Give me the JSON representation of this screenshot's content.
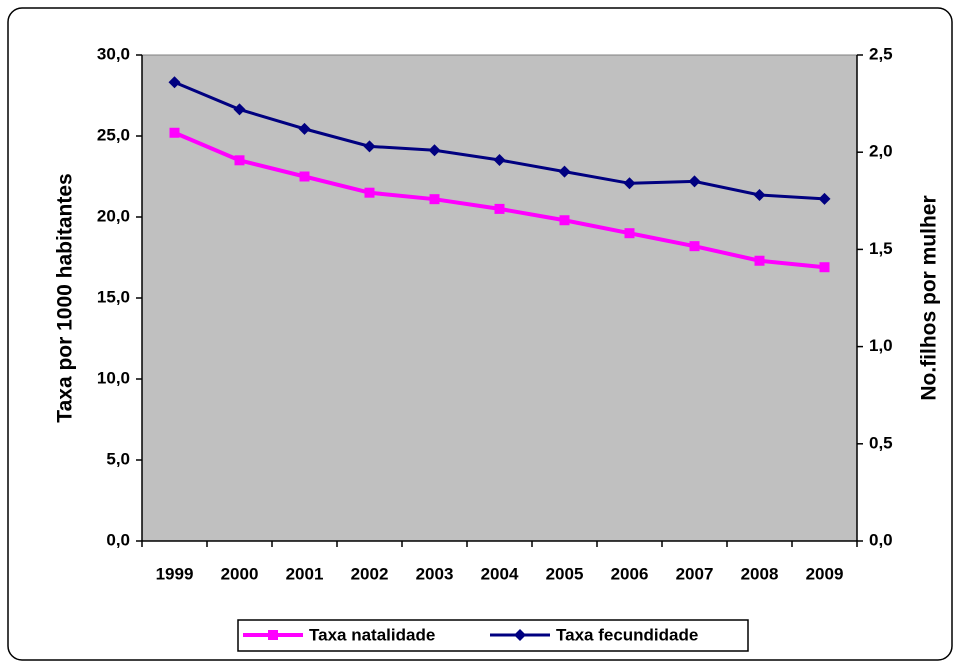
{
  "chart_data": {
    "type": "line",
    "categories": [
      "1999",
      "2000",
      "2001",
      "2002",
      "2003",
      "2004",
      "2005",
      "2006",
      "2007",
      "2008",
      "2009"
    ],
    "y_label": "Taxa por 1000 habitantes",
    "y2_label": "No.filhos por mulher",
    "ylim": [
      0,
      30
    ],
    "yticks": [
      {
        "value": 0,
        "label": "0,0"
      },
      {
        "value": 5,
        "label": "5,0"
      },
      {
        "value": 10,
        "label": "10,0"
      },
      {
        "value": 15,
        "label": "15,0"
      },
      {
        "value": 20,
        "label": "20,0"
      },
      {
        "value": 25,
        "label": "25,0"
      },
      {
        "value": 30,
        "label": "30,0"
      }
    ],
    "y2lim": [
      0,
      2.5
    ],
    "y2ticks": [
      {
        "value": 0,
        "label": "0,0"
      },
      {
        "value": 0.5,
        "label": "0,5"
      },
      {
        "value": 1,
        "label": "1,0"
      },
      {
        "value": 1.5,
        "label": "1,5"
      },
      {
        "value": 2,
        "label": "2,0"
      },
      {
        "value": 2.5,
        "label": "2,5"
      }
    ],
    "legend": "bottom",
    "series": [
      {
        "name": "Taxa natalidade",
        "color": "#ff00ff",
        "marker": "square",
        "values": [
          25.2,
          23.5,
          22.5,
          21.5,
          21.1,
          20.5,
          19.8,
          19.0,
          18.2,
          17.3,
          16.9
        ]
      },
      {
        "name": "Taxa fecundidade",
        "color": "#000080",
        "marker": "diamond",
        "axis": "y2",
        "values": [
          2.36,
          2.22,
          2.12,
          2.03,
          2.01,
          1.96,
          1.9,
          1.84,
          1.85,
          1.78,
          1.76
        ]
      }
    ]
  }
}
